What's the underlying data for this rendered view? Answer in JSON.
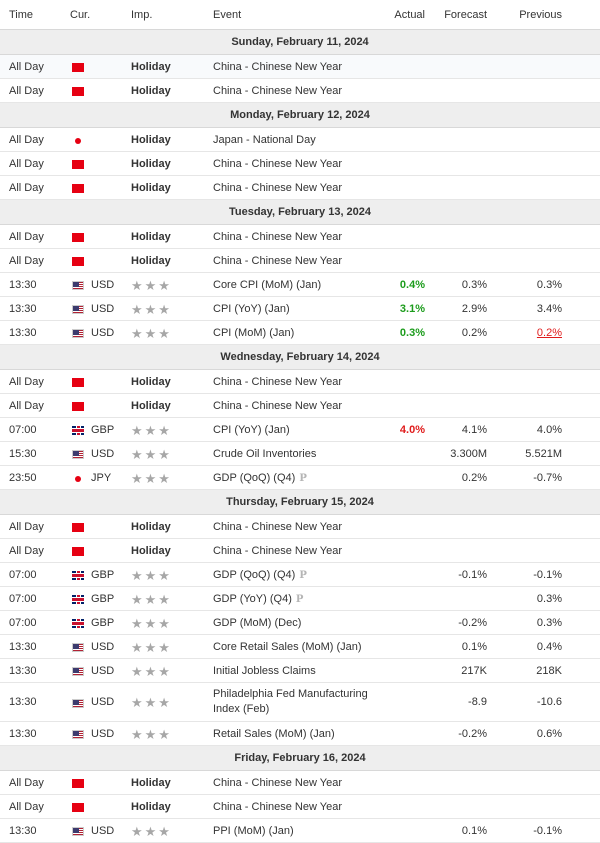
{
  "header": {
    "time": "Time",
    "cur": "Cur.",
    "imp": "Imp.",
    "event": "Event",
    "actual": "Actual",
    "forecast": "Forecast",
    "previous": "Previous"
  },
  "colors": {
    "positive": "#1c9c1c",
    "negative": "#e01b1b",
    "day_bg": "#eeeeee",
    "star": "#a7a7a7"
  },
  "preliminary_badge": "P",
  "stars": "★★★",
  "days": [
    {
      "date": "Sunday, February 11, 2024",
      "events": [
        {
          "time": "All Day",
          "flag": "flag-cn",
          "cur": "",
          "imp": "Holiday",
          "event": "China - Chinese New Year",
          "highlight": true
        },
        {
          "time": "All Day",
          "flag": "flag-cn",
          "cur": "",
          "imp": "Holiday",
          "event": "China - Chinese New Year"
        }
      ]
    },
    {
      "date": "Monday, February 12, 2024",
      "events": [
        {
          "time": "All Day",
          "flag": "flag-jp",
          "cur": "",
          "imp": "Holiday",
          "event": "Japan - National Day"
        },
        {
          "time": "All Day",
          "flag": "flag-cn",
          "cur": "",
          "imp": "Holiday",
          "event": "China - Chinese New Year"
        },
        {
          "time": "All Day",
          "flag": "flag-cn",
          "cur": "",
          "imp": "Holiday",
          "event": "China - Chinese New Year"
        }
      ]
    },
    {
      "date": "Tuesday, February 13, 2024",
      "events": [
        {
          "time": "All Day",
          "flag": "flag-cn",
          "cur": "",
          "imp": "Holiday",
          "event": "China - Chinese New Year"
        },
        {
          "time": "All Day",
          "flag": "flag-cn",
          "cur": "",
          "imp": "Holiday",
          "event": "China - Chinese New Year"
        },
        {
          "time": "13:30",
          "flag": "flag-us",
          "cur": "USD",
          "imp": "",
          "event": "Core CPI (MoM) (Jan)",
          "actual": "0.4%",
          "actual_color": "green",
          "forecast": "0.3%",
          "previous": "0.3%"
        },
        {
          "time": "13:30",
          "flag": "flag-us",
          "cur": "USD",
          "imp": "",
          "event": "CPI (YoY) (Jan)",
          "actual": "3.1%",
          "actual_color": "green",
          "forecast": "2.9%",
          "previous": "3.4%"
        },
        {
          "time": "13:30",
          "flag": "flag-us",
          "cur": "USD",
          "imp": "",
          "event": "CPI (MoM) (Jan)",
          "actual": "0.3%",
          "actual_color": "green",
          "forecast": "0.2%",
          "previous": "0.2%",
          "previous_style": "revised"
        }
      ]
    },
    {
      "date": "Wednesday, February 14, 2024",
      "events": [
        {
          "time": "All Day",
          "flag": "flag-cn",
          "cur": "",
          "imp": "Holiday",
          "event": "China - Chinese New Year"
        },
        {
          "time": "All Day",
          "flag": "flag-cn",
          "cur": "",
          "imp": "Holiday",
          "event": "China - Chinese New Year"
        },
        {
          "time": "07:00",
          "flag": "flag-gb",
          "cur": "GBP",
          "imp": "",
          "event": "CPI (YoY) (Jan)",
          "actual": "4.0%",
          "actual_color": "red",
          "forecast": "4.1%",
          "previous": "4.0%"
        },
        {
          "time": "15:30",
          "flag": "flag-us",
          "cur": "USD",
          "imp": "",
          "event": "Crude Oil Inventories",
          "forecast": "3.300M",
          "previous": "5.521M"
        },
        {
          "time": "23:50",
          "flag": "flag-jp",
          "cur": "JPY",
          "imp": "",
          "event": "GDP (QoQ) (Q4)",
          "prelim": true,
          "forecast": "0.2%",
          "previous": "-0.7%"
        }
      ]
    },
    {
      "date": "Thursday, February 15, 2024",
      "events": [
        {
          "time": "All Day",
          "flag": "flag-cn",
          "cur": "",
          "imp": "Holiday",
          "event": "China - Chinese New Year"
        },
        {
          "time": "All Day",
          "flag": "flag-cn",
          "cur": "",
          "imp": "Holiday",
          "event": "China - Chinese New Year"
        },
        {
          "time": "07:00",
          "flag": "flag-gb",
          "cur": "GBP",
          "imp": "",
          "event": "GDP (QoQ) (Q4)",
          "prelim": true,
          "forecast": "-0.1%",
          "previous": "-0.1%"
        },
        {
          "time": "07:00",
          "flag": "flag-gb",
          "cur": "GBP",
          "imp": "",
          "event": "GDP (YoY) (Q4)",
          "prelim": true,
          "previous": "0.3%"
        },
        {
          "time": "07:00",
          "flag": "flag-gb",
          "cur": "GBP",
          "imp": "",
          "event": "GDP (MoM) (Dec)",
          "forecast": "-0.2%",
          "previous": "0.3%"
        },
        {
          "time": "13:30",
          "flag": "flag-us",
          "cur": "USD",
          "imp": "",
          "event": "Core Retail Sales (MoM) (Jan)",
          "forecast": "0.1%",
          "previous": "0.4%"
        },
        {
          "time": "13:30",
          "flag": "flag-us",
          "cur": "USD",
          "imp": "",
          "event": "Initial Jobless Claims",
          "forecast": "217K",
          "previous": "218K"
        },
        {
          "time": "13:30",
          "flag": "flag-us",
          "cur": "USD",
          "imp": "",
          "event": "Philadelphia Fed Manufacturing Index (Feb)",
          "tall": true,
          "forecast": "-8.9",
          "previous": "-10.6"
        },
        {
          "time": "13:30",
          "flag": "flag-us",
          "cur": "USD",
          "imp": "",
          "event": "Retail Sales (MoM) (Jan)",
          "forecast": "-0.2%",
          "previous": "0.6%"
        }
      ]
    },
    {
      "date": "Friday, February 16, 2024",
      "events": [
        {
          "time": "All Day",
          "flag": "flag-cn",
          "cur": "",
          "imp": "Holiday",
          "event": "China - Chinese New Year"
        },
        {
          "time": "All Day",
          "flag": "flag-cn",
          "cur": "",
          "imp": "Holiday",
          "event": "China - Chinese New Year"
        },
        {
          "time": "13:30",
          "flag": "flag-us",
          "cur": "USD",
          "imp": "",
          "event": "PPI (MoM) (Jan)",
          "forecast": "0.1%",
          "previous": "-0.1%"
        }
      ]
    }
  ]
}
